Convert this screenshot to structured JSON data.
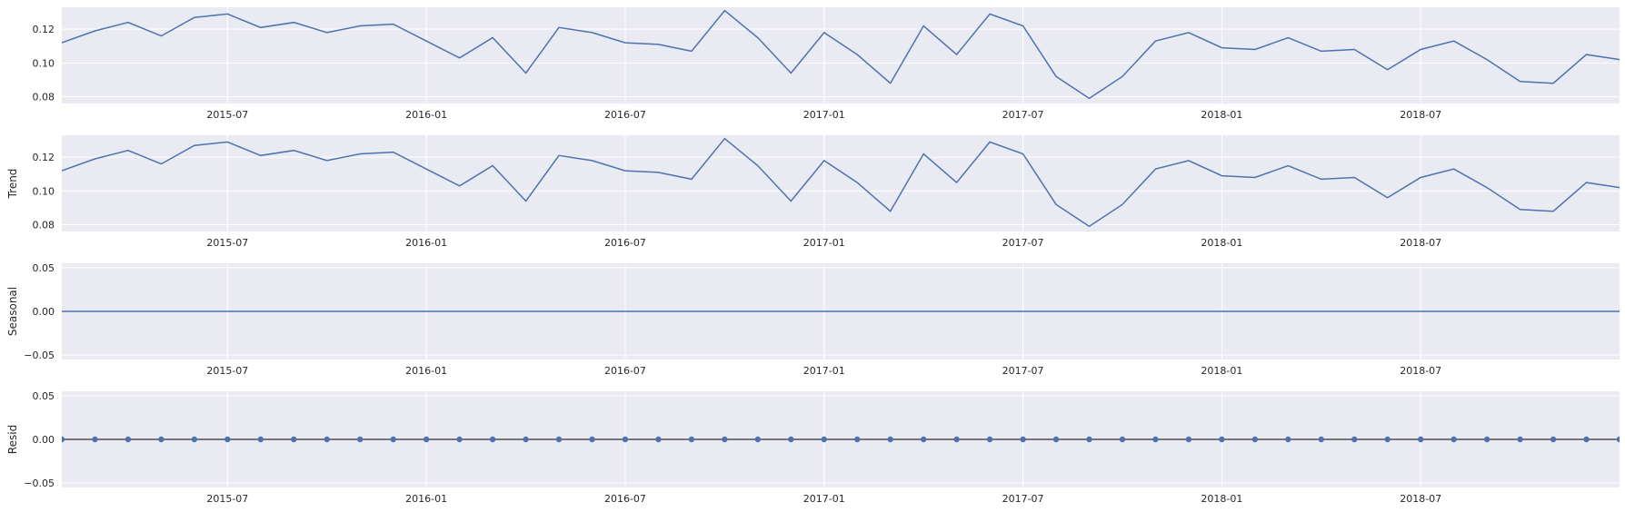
{
  "chart_data": [
    {
      "type": "line",
      "title": "",
      "ylabel": "",
      "x": [
        "2015-02",
        "2015-03",
        "2015-04",
        "2015-05",
        "2015-06",
        "2015-07",
        "2015-08",
        "2015-09",
        "2015-10",
        "2015-11",
        "2015-12",
        "2016-01",
        "2016-02",
        "2016-03",
        "2016-04",
        "2016-05",
        "2016-06",
        "2016-07",
        "2016-08",
        "2016-09",
        "2016-10",
        "2016-11",
        "2016-12",
        "2017-01",
        "2017-02",
        "2017-03",
        "2017-04",
        "2017-05",
        "2017-06",
        "2017-07",
        "2017-08",
        "2017-09",
        "2017-10",
        "2017-11",
        "2017-12",
        "2018-01",
        "2018-02",
        "2018-03",
        "2018-04",
        "2018-05",
        "2018-06",
        "2018-07",
        "2018-08",
        "2018-09",
        "2018-10",
        "2018-11",
        "2018-12",
        "2019-01"
      ],
      "values": [
        0.112,
        0.119,
        0.124,
        0.116,
        0.127,
        0.129,
        0.121,
        0.124,
        0.118,
        0.122,
        0.123,
        0.113,
        0.103,
        0.115,
        0.094,
        0.121,
        0.118,
        0.112,
        0.111,
        0.107,
        0.131,
        0.115,
        0.094,
        0.118,
        0.105,
        0.088,
        0.122,
        0.105,
        0.129,
        0.122,
        0.092,
        0.079,
        0.092,
        0.113,
        0.118,
        0.109,
        0.108,
        0.115,
        0.107,
        0.108,
        0.096,
        0.108,
        0.113,
        0.102,
        0.089,
        0.088,
        0.105,
        0.102
      ],
      "ylim": [
        0.076,
        0.133
      ],
      "yticks": [
        "0.08",
        "0.10",
        "0.12"
      ],
      "xtick_labels": [
        "2015-07",
        "2016-01",
        "2016-07",
        "2017-01",
        "2017-07",
        "2018-01",
        "2018-07"
      ],
      "grid": true,
      "color": "#4c72b0"
    },
    {
      "type": "line",
      "title": "",
      "ylabel": "Trend",
      "x": [
        "2015-02",
        "2015-03",
        "2015-04",
        "2015-05",
        "2015-06",
        "2015-07",
        "2015-08",
        "2015-09",
        "2015-10",
        "2015-11",
        "2015-12",
        "2016-01",
        "2016-02",
        "2016-03",
        "2016-04",
        "2016-05",
        "2016-06",
        "2016-07",
        "2016-08",
        "2016-09",
        "2016-10",
        "2016-11",
        "2016-12",
        "2017-01",
        "2017-02",
        "2017-03",
        "2017-04",
        "2017-05",
        "2017-06",
        "2017-07",
        "2017-08",
        "2017-09",
        "2017-10",
        "2017-11",
        "2017-12",
        "2018-01",
        "2018-02",
        "2018-03",
        "2018-04",
        "2018-05",
        "2018-06",
        "2018-07",
        "2018-08",
        "2018-09",
        "2018-10",
        "2018-11",
        "2018-12",
        "2019-01"
      ],
      "values": [
        0.112,
        0.119,
        0.124,
        0.116,
        0.127,
        0.129,
        0.121,
        0.124,
        0.118,
        0.122,
        0.123,
        0.113,
        0.103,
        0.115,
        0.094,
        0.121,
        0.118,
        0.112,
        0.111,
        0.107,
        0.131,
        0.115,
        0.094,
        0.118,
        0.105,
        0.088,
        0.122,
        0.105,
        0.129,
        0.122,
        0.092,
        0.079,
        0.092,
        0.113,
        0.118,
        0.109,
        0.108,
        0.115,
        0.107,
        0.108,
        0.096,
        0.108,
        0.113,
        0.102,
        0.089,
        0.088,
        0.105,
        0.102
      ],
      "ylim": [
        0.076,
        0.133
      ],
      "yticks": [
        "0.08",
        "0.10",
        "0.12"
      ],
      "xtick_labels": [
        "2015-07",
        "2016-01",
        "2016-07",
        "2017-01",
        "2017-07",
        "2018-01",
        "2018-07"
      ],
      "grid": true,
      "color": "#4c72b0"
    },
    {
      "type": "line",
      "title": "",
      "ylabel": "Seasonal",
      "x": [
        "2015-02",
        "2015-03",
        "2015-04",
        "2015-05",
        "2015-06",
        "2015-07",
        "2015-08",
        "2015-09",
        "2015-10",
        "2015-11",
        "2015-12",
        "2016-01",
        "2016-02",
        "2016-03",
        "2016-04",
        "2016-05",
        "2016-06",
        "2016-07",
        "2016-08",
        "2016-09",
        "2016-10",
        "2016-11",
        "2016-12",
        "2017-01",
        "2017-02",
        "2017-03",
        "2017-04",
        "2017-05",
        "2017-06",
        "2017-07",
        "2017-08",
        "2017-09",
        "2017-10",
        "2017-11",
        "2017-12",
        "2018-01",
        "2018-02",
        "2018-03",
        "2018-04",
        "2018-05",
        "2018-06",
        "2018-07",
        "2018-08",
        "2018-09",
        "2018-10",
        "2018-11",
        "2018-12",
        "2019-01"
      ],
      "values": [
        0,
        0,
        0,
        0,
        0,
        0,
        0,
        0,
        0,
        0,
        0,
        0,
        0,
        0,
        0,
        0,
        0,
        0,
        0,
        0,
        0,
        0,
        0,
        0,
        0,
        0,
        0,
        0,
        0,
        0,
        0,
        0,
        0,
        0,
        0,
        0,
        0,
        0,
        0,
        0,
        0,
        0,
        0,
        0,
        0,
        0,
        0,
        0
      ],
      "ylim": [
        -0.055,
        0.055
      ],
      "yticks": [
        "0.05",
        "0.00",
        "−0.05"
      ],
      "xtick_labels": [
        "2015-07",
        "2016-01",
        "2016-07",
        "2017-01",
        "2017-07",
        "2018-01",
        "2018-07"
      ],
      "grid": true,
      "color": "#4c72b0"
    },
    {
      "type": "scatter",
      "title": "",
      "ylabel": "Resid",
      "x": [
        "2015-02",
        "2015-03",
        "2015-04",
        "2015-05",
        "2015-06",
        "2015-07",
        "2015-08",
        "2015-09",
        "2015-10",
        "2015-11",
        "2015-12",
        "2016-01",
        "2016-02",
        "2016-03",
        "2016-04",
        "2016-05",
        "2016-06",
        "2016-07",
        "2016-08",
        "2016-09",
        "2016-10",
        "2016-11",
        "2016-12",
        "2017-01",
        "2017-02",
        "2017-03",
        "2017-04",
        "2017-05",
        "2017-06",
        "2017-07",
        "2017-08",
        "2017-09",
        "2017-10",
        "2017-11",
        "2017-12",
        "2018-01",
        "2018-02",
        "2018-03",
        "2018-04",
        "2018-05",
        "2018-06",
        "2018-07",
        "2018-08",
        "2018-09",
        "2018-10",
        "2018-11",
        "2018-12",
        "2019-01"
      ],
      "values": [
        0,
        0,
        0,
        0,
        0,
        0,
        0,
        0,
        0,
        0,
        0,
        0,
        0,
        0,
        0,
        0,
        0,
        0,
        0,
        0,
        0,
        0,
        0,
        0,
        0,
        0,
        0,
        0,
        0,
        0,
        0,
        0,
        0,
        0,
        0,
        0,
        0,
        0,
        0,
        0,
        0,
        0,
        0,
        0,
        0,
        0,
        0,
        0
      ],
      "ylim": [
        -0.055,
        0.055
      ],
      "yticks": [
        "0.05",
        "0.00",
        "−0.05"
      ],
      "xtick_labels": [
        "2015-07",
        "2016-01",
        "2016-07",
        "2017-01",
        "2017-07",
        "2018-01",
        "2018-07"
      ],
      "grid": true,
      "baseline": 0,
      "color": "#4c72b0",
      "baseline_color": "#000000"
    }
  ],
  "style": {
    "panel_background": "#eaeaf2",
    "grid_color": "#ffffff",
    "text_color": "#262626"
  }
}
